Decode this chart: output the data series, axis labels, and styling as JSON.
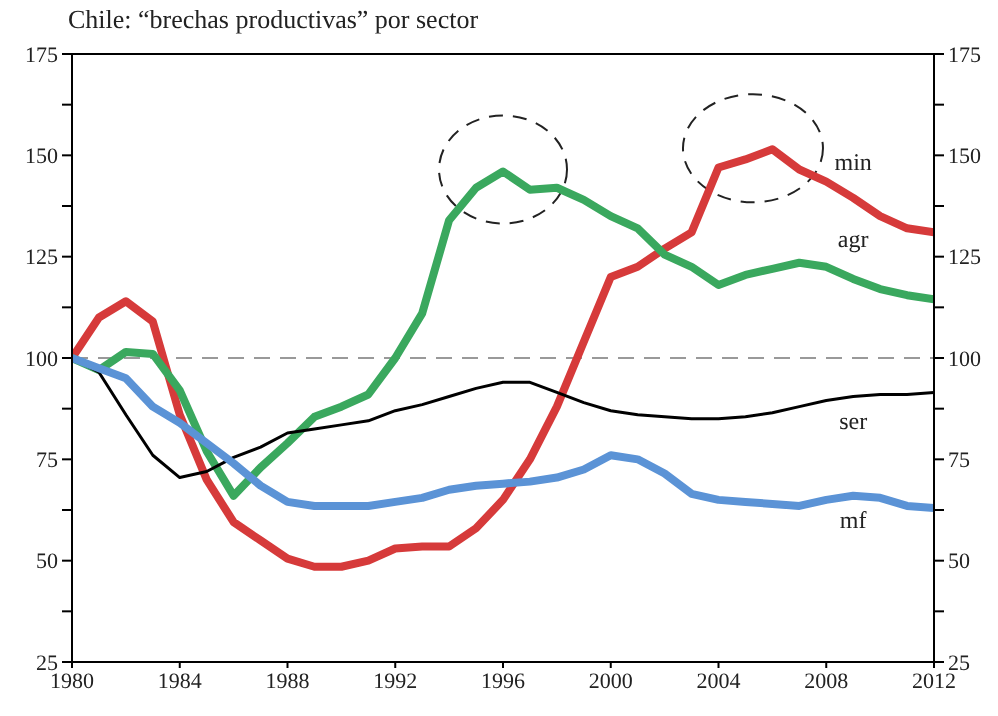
{
  "chart_data": {
    "type": "line",
    "title": "Chile: “brechas productivas” por sector",
    "x": [
      1980,
      1981,
      1982,
      1983,
      1984,
      1985,
      1986,
      1987,
      1988,
      1989,
      1990,
      1991,
      1992,
      1993,
      1994,
      1995,
      1996,
      1997,
      1998,
      1999,
      2000,
      2001,
      2002,
      2003,
      2004,
      2005,
      2006,
      2007,
      2008,
      2009,
      2010,
      2011,
      2012
    ],
    "series": [
      {
        "name": "min",
        "color": "#d63a3a",
        "values": [
          100,
          110,
          114,
          109,
          86,
          70,
          59.5,
          55,
          50.5,
          48.5,
          48.5,
          50,
          53,
          53.5,
          53.5,
          58,
          65,
          75,
          88,
          104,
          120,
          122.5,
          127,
          131,
          147,
          149,
          151.5,
          146.5,
          143.5,
          139.5,
          135,
          132,
          131
        ]
      },
      {
        "name": "agr",
        "color": "#3aa85e",
        "values": [
          100,
          97,
          101.5,
          101,
          92,
          77,
          66,
          73,
          79,
          85.5,
          88,
          91,
          100,
          111,
          134,
          142,
          146,
          141.5,
          142,
          139,
          135,
          132,
          125.5,
          122.5,
          118,
          120.5,
          122,
          123.5,
          122.5,
          119.5,
          117,
          115.5,
          114.5
        ]
      },
      {
        "name": "ser",
        "color": "#000000",
        "values": [
          100,
          96.5,
          86,
          76,
          70.5,
          72,
          75.5,
          78,
          81.5,
          82.5,
          83.5,
          84.5,
          87,
          88.5,
          90.5,
          92.5,
          94,
          94,
          91.5,
          89,
          87,
          86,
          85.5,
          85,
          85,
          85.5,
          86.5,
          88,
          89.5,
          90.5,
          91,
          91,
          91.5
        ]
      },
      {
        "name": "mf",
        "color": "#5b93d6",
        "values": [
          100,
          97.5,
          95,
          88,
          84,
          79,
          74,
          68.5,
          64.5,
          63.5,
          63.5,
          63.5,
          64.5,
          65.5,
          67.5,
          68.5,
          69,
          69.5,
          70.5,
          72.5,
          76,
          75,
          71.5,
          66.5,
          65,
          64.5,
          64,
          63.5,
          65,
          66,
          65.5,
          63.5,
          63
        ]
      }
    ],
    "xlim": [
      1980,
      2012
    ],
    "xticks": [
      1980,
      1984,
      1988,
      1992,
      1996,
      2000,
      2004,
      2008,
      2012
    ],
    "ylim": [
      25,
      175
    ],
    "yticks": [
      25,
      {
        "value": 37.5,
        "label": null
      },
      50,
      {
        "value": 62.5,
        "label": null
      },
      75,
      {
        "value": 87.5,
        "label": null
      },
      100,
      {
        "value": 112.5,
        "label": null
      },
      125,
      {
        "value": 137.5,
        "label": null
      },
      150,
      {
        "value": 162.5,
        "label": null
      },
      175
    ],
    "y2lim": [
      25,
      175
    ],
    "y2ticks": [
      25,
      {
        "value": 37.5,
        "label": null
      },
      50,
      {
        "value": 62.5,
        "label": null
      },
      75,
      {
        "value": 87.5,
        "label": null
      },
      100,
      {
        "value": 112.5,
        "label": null
      },
      125,
      {
        "value": 137.5,
        "label": null
      },
      150,
      {
        "value": 162.5,
        "label": null
      },
      175
    ],
    "ref_lines": [
      {
        "axis": "y",
        "value": 100,
        "color": "#999999",
        "line_style": "dashed"
      }
    ],
    "marker": "none",
    "line_style": "solid"
  }
}
